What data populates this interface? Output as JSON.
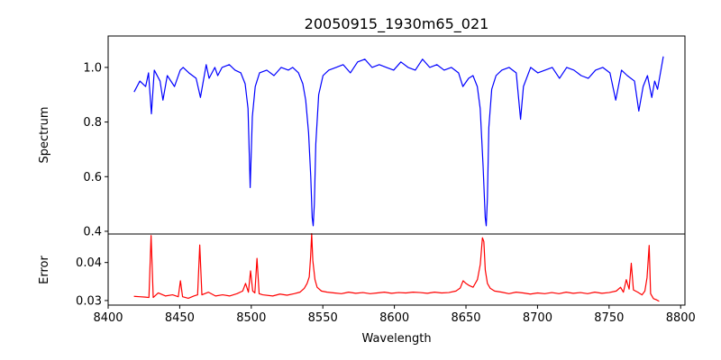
{
  "chart_data": [
    {
      "type": "line",
      "title": "20050915_1930m65_021",
      "xlabel": "",
      "ylabel": "Spectrum",
      "xlim": [
        8400,
        8800
      ],
      "ylim": [
        0.39,
        1.115
      ],
      "yticks": [
        "0.4",
        "0.6",
        "0.8",
        "1.0"
      ],
      "grid": false,
      "series": [
        {
          "color": "#0000ff",
          "x": [
            8418,
            8422,
            8426,
            8428,
            8430,
            8432,
            8436,
            8438,
            8441,
            8446,
            8450,
            8452,
            8456,
            8461,
            8464,
            8468,
            8470,
            8474,
            8476,
            8479,
            8484,
            8488,
            8492,
            8495,
            8497,
            8498.5,
            8500,
            8502,
            8505,
            8510,
            8515,
            8520,
            8525,
            8528,
            8532,
            8535,
            8537,
            8539,
            8540.5,
            8541.5,
            8542.2,
            8543,
            8544,
            8546,
            8549,
            8553,
            8558,
            8563,
            8568,
            8573,
            8578,
            8583,
            8588,
            8593,
            8598,
            8603,
            8608,
            8613,
            8618,
            8623,
            8628,
            8633,
            8638,
            8643,
            8646,
            8650,
            8653,
            8656,
            8658,
            8660,
            8661.5,
            8662.2,
            8663,
            8664,
            8666,
            8669,
            8673,
            8678,
            8683,
            8686,
            8688,
            8693,
            8698,
            8703,
            8708,
            8713,
            8718,
            8723,
            8728,
            8733,
            8738,
            8743,
            8748,
            8752,
            8756,
            8760,
            8765,
            8768,
            8771,
            8774,
            8777,
            8779,
            8781,
            8783,
            8785
          ],
          "values": [
            0.91,
            0.95,
            0.93,
            0.98,
            0.83,
            0.99,
            0.95,
            0.88,
            0.97,
            0.93,
            0.99,
            1.0,
            0.98,
            0.96,
            0.89,
            1.01,
            0.96,
            1.0,
            0.97,
            1.0,
            1.01,
            0.99,
            0.98,
            0.94,
            0.85,
            0.56,
            0.82,
            0.93,
            0.98,
            0.99,
            0.97,
            1.0,
            0.99,
            1.0,
            0.98,
            0.94,
            0.88,
            0.76,
            0.6,
            0.45,
            0.42,
            0.5,
            0.72,
            0.9,
            0.97,
            0.99,
            1.0,
            1.01,
            0.98,
            1.02,
            1.03,
            1.0,
            1.01,
            1.0,
            0.99,
            1.02,
            1.0,
            0.99,
            1.03,
            1.0,
            1.01,
            0.99,
            1.0,
            0.98,
            0.93,
            0.96,
            0.97,
            0.93,
            0.85,
            0.64,
            0.45,
            0.42,
            0.52,
            0.78,
            0.92,
            0.97,
            0.99,
            1.0,
            0.98,
            0.81,
            0.93,
            1.0,
            0.98,
            0.99,
            1.0,
            0.96,
            1.0,
            0.99,
            0.97,
            0.96,
            0.99,
            1.0,
            0.98,
            0.88,
            0.99,
            0.97,
            0.95,
            0.84,
            0.93,
            0.97,
            0.89,
            0.95,
            0.92,
            0.98,
            1.04
          ]
        }
      ]
    },
    {
      "type": "line",
      "title": "",
      "xlabel": "Wavelength",
      "ylabel": "Error",
      "xlim": [
        8400,
        8803
      ],
      "ylim": [
        0.0288,
        0.0475
      ],
      "xticks": [
        "8400",
        "8450",
        "8500",
        "8550",
        "8600",
        "8650",
        "8700",
        "8750",
        "8800"
      ],
      "yticks": [
        "0.03",
        "0.04"
      ],
      "grid": false,
      "series": [
        {
          "color": "#ff0000",
          "x": [
            8418,
            8422,
            8426,
            8428.5,
            8430,
            8431.5,
            8435,
            8440,
            8445,
            8449,
            8450.5,
            8452,
            8456,
            8460,
            8462.5,
            8464,
            8465.5,
            8470,
            8475,
            8480,
            8485,
            8490,
            8494,
            8496,
            8498,
            8499.5,
            8501,
            8502.5,
            8504,
            8505.5,
            8508,
            8515,
            8520,
            8525,
            8530,
            8534,
            8537,
            8539,
            8540.5,
            8541.5,
            8542.2,
            8543,
            8544.5,
            8546,
            8549,
            8553,
            8558,
            8563,
            8568,
            8573,
            8578,
            8583,
            8588,
            8593,
            8598,
            8603,
            8608,
            8613,
            8618,
            8623,
            8628,
            8633,
            8638,
            8643,
            8646,
            8648,
            8650,
            8652,
            8655,
            8658,
            8660,
            8661.5,
            8662.5,
            8663.5,
            8665,
            8667,
            8670,
            8675,
            8680,
            8685,
            8690,
            8695,
            8700,
            8705,
            8710,
            8715,
            8720,
            8725,
            8730,
            8735,
            8740,
            8745,
            8750,
            8755,
            8758,
            8760,
            8762,
            8764,
            8765.5,
            8767,
            8770,
            8773,
            8775,
            8776.5,
            8778,
            8779,
            8781,
            8783,
            8785
          ],
          "values": [
            0.0311,
            0.031,
            0.0309,
            0.0308,
            0.0471,
            0.0308,
            0.032,
            0.0312,
            0.0315,
            0.031,
            0.0352,
            0.031,
            0.0306,
            0.0312,
            0.0315,
            0.0446,
            0.0315,
            0.0322,
            0.0312,
            0.0315,
            0.0312,
            0.0318,
            0.0325,
            0.0345,
            0.0322,
            0.0378,
            0.0325,
            0.032,
            0.0411,
            0.0318,
            0.0315,
            0.0312,
            0.0317,
            0.0314,
            0.0318,
            0.0322,
            0.0332,
            0.0345,
            0.0362,
            0.0418,
            0.0476,
            0.0405,
            0.0355,
            0.0335,
            0.0325,
            0.0322,
            0.032,
            0.0318,
            0.0322,
            0.0319,
            0.0321,
            0.0318,
            0.032,
            0.0322,
            0.0319,
            0.0321,
            0.032,
            0.0322,
            0.0321,
            0.0319,
            0.0322,
            0.032,
            0.0321,
            0.0325,
            0.0333,
            0.0352,
            0.0345,
            0.034,
            0.0335,
            0.0355,
            0.0395,
            0.0465,
            0.0455,
            0.038,
            0.0345,
            0.0332,
            0.0325,
            0.0322,
            0.0318,
            0.0322,
            0.032,
            0.0317,
            0.032,
            0.0318,
            0.0321,
            0.0318,
            0.0322,
            0.0319,
            0.0321,
            0.0318,
            0.0322,
            0.0319,
            0.0321,
            0.0325,
            0.0335,
            0.0322,
            0.0355,
            0.033,
            0.0398,
            0.0328,
            0.0322,
            0.0315,
            0.0325,
            0.036,
            0.0445,
            0.0318,
            0.0305,
            0.0302,
            0.0298
          ]
        }
      ]
    }
  ]
}
